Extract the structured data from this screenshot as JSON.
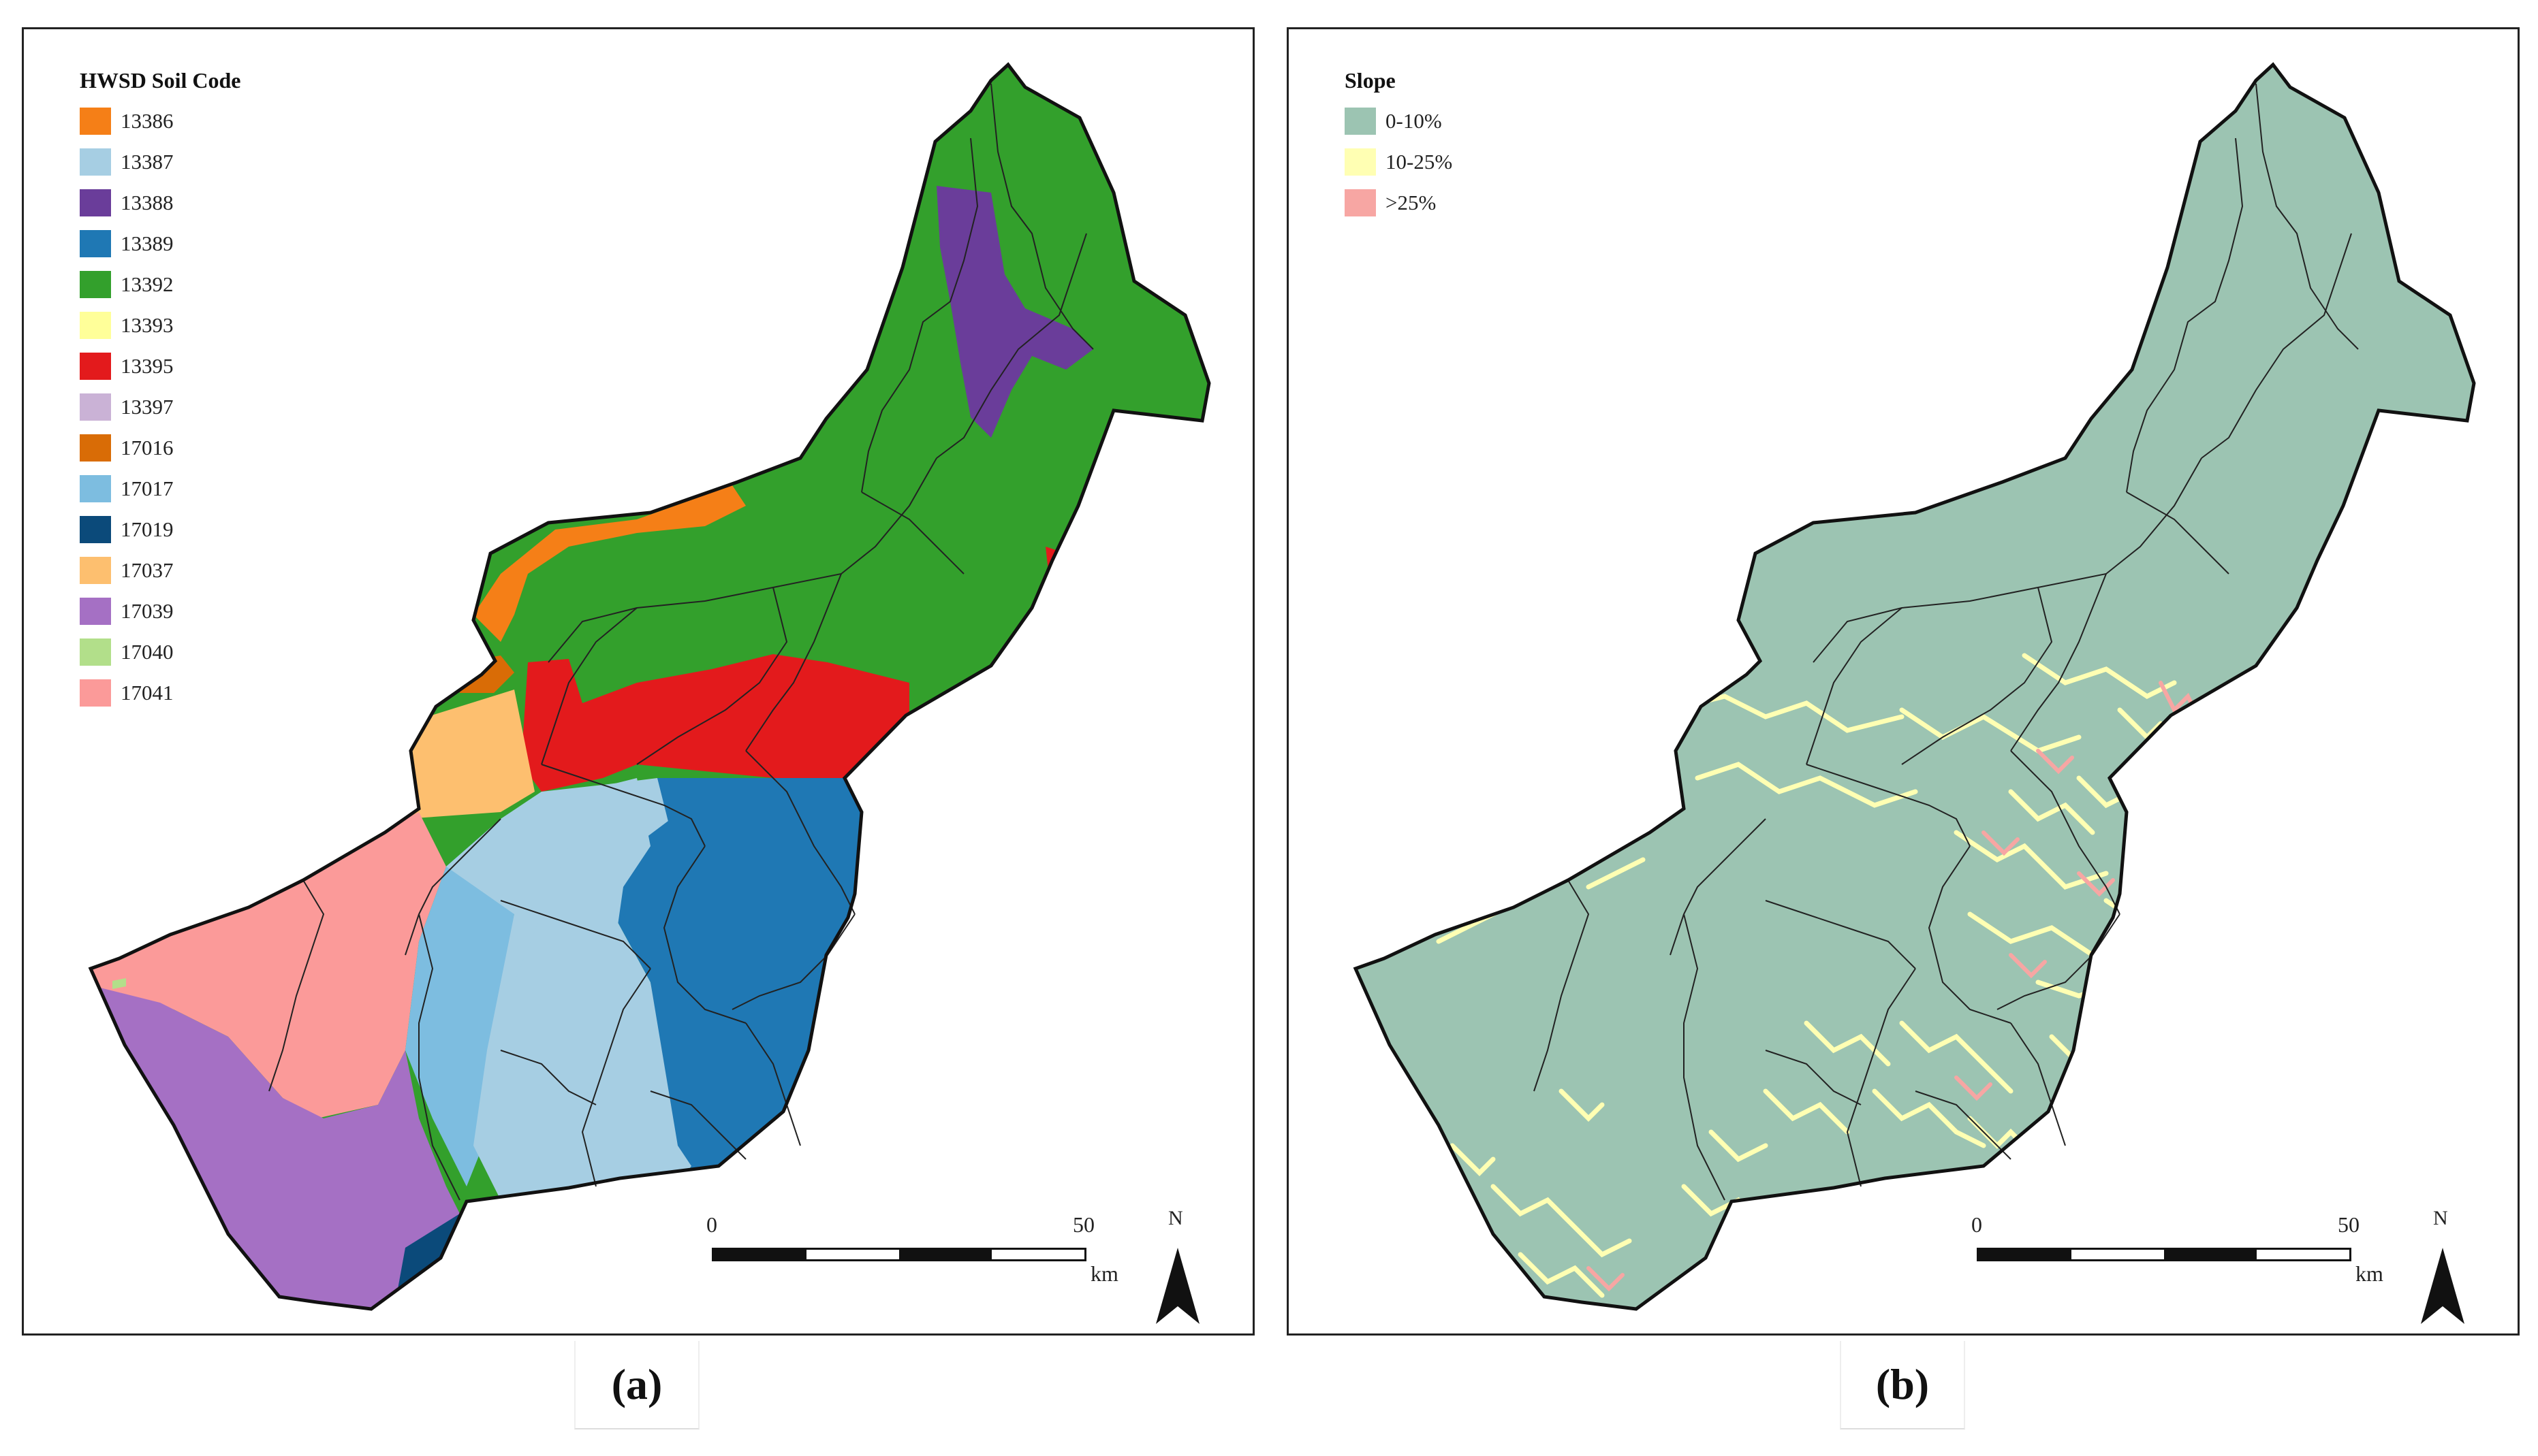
{
  "panels": [
    {
      "id": "a",
      "legend_title": "HWSD Soil Code",
      "legend": [
        {
          "label": "13386",
          "color": "#f57f17"
        },
        {
          "label": "13387",
          "color": "#a6cee3"
        },
        {
          "label": "13388",
          "color": "#6a3d9a"
        },
        {
          "label": "13389",
          "color": "#1f78b4"
        },
        {
          "label": "13392",
          "color": "#33a02c"
        },
        {
          "label": "13393",
          "color": "#ffff99"
        },
        {
          "label": "13395",
          "color": "#e31a1c"
        },
        {
          "label": "13397",
          "color": "#cab2d6"
        },
        {
          "label": "17016",
          "color": "#d96c06"
        },
        {
          "label": "17017",
          "color": "#7dbde0"
        },
        {
          "label": "17019",
          "color": "#0b4a7a"
        },
        {
          "label": "17037",
          "color": "#fdbf6f"
        },
        {
          "label": "17039",
          "color": "#a570c4"
        },
        {
          "label": "17040",
          "color": "#b2df8a"
        },
        {
          "label": "17041",
          "color": "#fb9a99"
        }
      ],
      "scale": {
        "start": "0",
        "end": "50",
        "unit": "km"
      },
      "north": "N",
      "caption": "(a)"
    },
    {
      "id": "b",
      "legend_title": "Slope",
      "legend": [
        {
          "label": "0-10%",
          "color": "#9cc4b2"
        },
        {
          "label": "10-25%",
          "color": "#ffffb3"
        },
        {
          "label": ">25%",
          "color": "#f7a6a3"
        }
      ],
      "scale": {
        "start": "0",
        "end": "50",
        "unit": "km"
      },
      "north": "N",
      "caption": "(b)"
    }
  ]
}
